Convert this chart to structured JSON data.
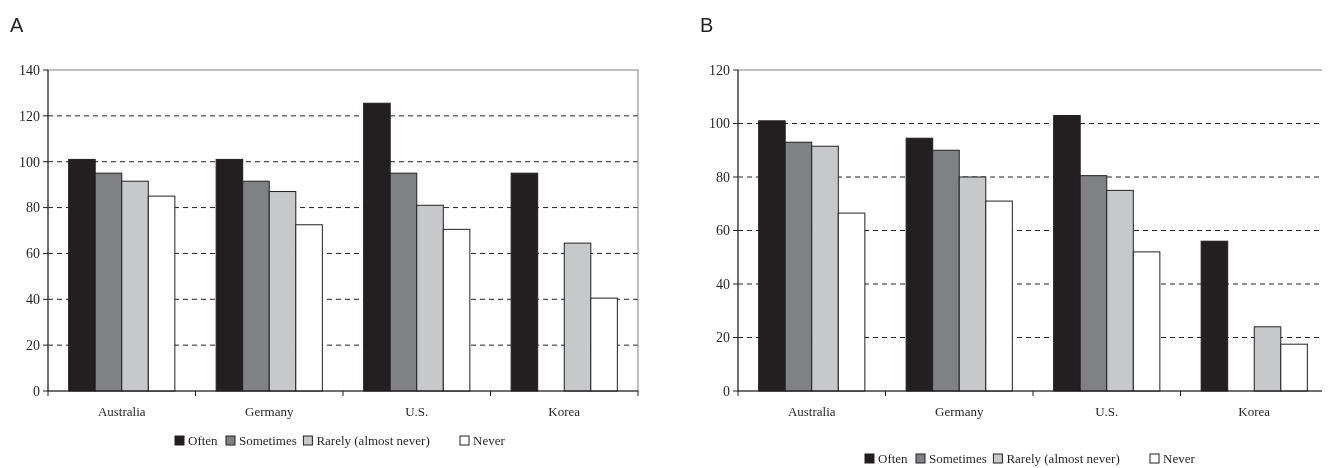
{
  "chart_data": [
    {
      "type": "bar",
      "title": "A",
      "categories": [
        "Australia",
        "Germany",
        "U.S.",
        "Korea"
      ],
      "ylim": [
        0,
        140
      ],
      "yticks": [
        0,
        20,
        40,
        60,
        80,
        100,
        120,
        140
      ],
      "grid": "y",
      "legend": "bottom",
      "series": [
        {
          "name": "Often",
          "color": "#231f20",
          "values": [
            101,
            101,
            125.5,
            95
          ]
        },
        {
          "name": "Sometimes",
          "color": "#808184",
          "values": [
            95,
            91.5,
            95,
            null
          ]
        },
        {
          "name": "Rarely (almost never)",
          "color": "#c7c8ca",
          "values": [
            91.5,
            87,
            81,
            64.5
          ]
        },
        {
          "name": "Never",
          "color": "#ffffff",
          "values": [
            85,
            72.5,
            70.5,
            40.5
          ]
        }
      ]
    },
    {
      "type": "bar",
      "title": "B",
      "categories": [
        "Australia",
        "Germany",
        "U.S.",
        "Korea"
      ],
      "ylim": [
        0,
        120
      ],
      "yticks": [
        0,
        20,
        40,
        60,
        80,
        100,
        120
      ],
      "grid": "y",
      "legend": "bottom",
      "series": [
        {
          "name": "Often",
          "color": "#231f20",
          "values": [
            101,
            94.5,
            103,
            56
          ]
        },
        {
          "name": "Sometimes",
          "color": "#808184",
          "values": [
            93,
            90,
            80.5,
            null
          ]
        },
        {
          "name": "Rarely (almost never)",
          "color": "#c7c8ca",
          "values": [
            91.5,
            80,
            75,
            24
          ]
        },
        {
          "name": "Never",
          "color": "#ffffff",
          "values": [
            66.5,
            71,
            52,
            17.5
          ]
        }
      ]
    }
  ]
}
